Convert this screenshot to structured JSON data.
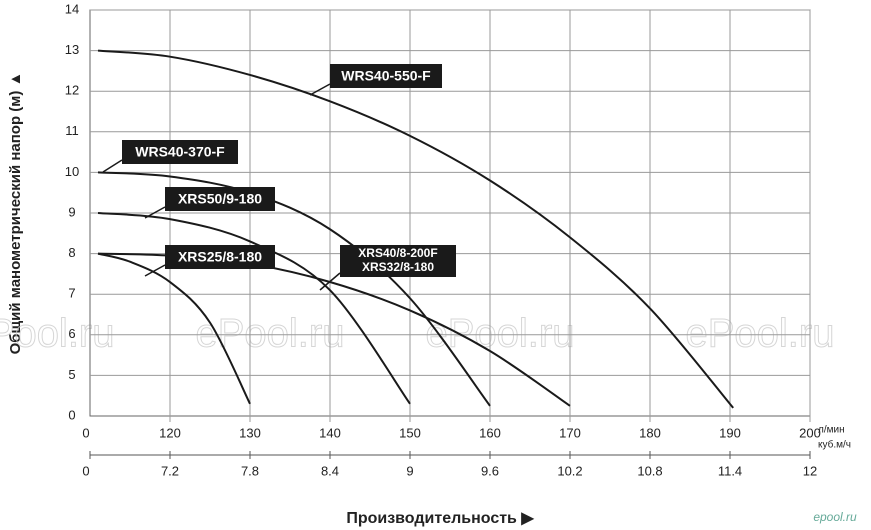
{
  "chart_data": {
    "type": "line",
    "y_axis_label": "Общий манометрический напор (м) ▲",
    "x_axis_label": "Производительность ▶",
    "x_unit": "л/мин",
    "x2_unit": "куб.м/ч",
    "xlim": [
      110,
      200
    ],
    "xticks": [
      120,
      130,
      140,
      150,
      160,
      170,
      180,
      190,
      200
    ],
    "x_zero_label": "0",
    "x2lim": [
      6.6,
      12
    ],
    "x2ticks": [
      7.2,
      7.8,
      8.4,
      9,
      9.6,
      10.2,
      10.8,
      11.4,
      12
    ],
    "x2_zero_label": "0",
    "ylim": [
      4,
      14
    ],
    "yticks": [
      5,
      6,
      7,
      8,
      9,
      10,
      11,
      12,
      13,
      14
    ],
    "y_zero_label": "0",
    "grid": true,
    "color": "#1a1a1a",
    "series": [
      {
        "name": "WRS40-550-F",
        "x": [
          111,
          120,
          130,
          140,
          150,
          160,
          170,
          180,
          190.4
        ],
        "values": [
          13.0,
          12.85,
          12.4,
          11.75,
          10.9,
          9.8,
          8.4,
          6.65,
          4.2
        ]
      },
      {
        "name": "WRS40-370-F",
        "x": [
          111,
          120,
          130,
          140,
          150,
          160
        ],
        "values": [
          10.0,
          9.9,
          9.5,
          8.6,
          6.9,
          4.25
        ]
      },
      {
        "name": "XRS50/9-180",
        "x": [
          111,
          120,
          130,
          140,
          150
        ],
        "values": [
          9.0,
          8.85,
          8.3,
          7.1,
          4.3
        ]
      },
      {
        "name": "XRS25/8-180",
        "x": [
          111,
          115,
          120,
          125,
          130
        ],
        "values": [
          8.0,
          7.8,
          7.3,
          6.3,
          4.3
        ]
      },
      {
        "name": "XRS40/8-200F",
        "x": [
          111,
          120,
          130,
          140,
          150,
          160,
          170
        ],
        "values": [
          8.0,
          7.95,
          7.75,
          7.3,
          6.6,
          5.6,
          4.25
        ]
      }
    ],
    "annotations": [
      "XRS32/8-180"
    ],
    "watermarks": [
      "ePool.ru",
      "ePool.ru",
      "ePool.ru",
      "ePool.ru",
      "epool.ru"
    ]
  }
}
